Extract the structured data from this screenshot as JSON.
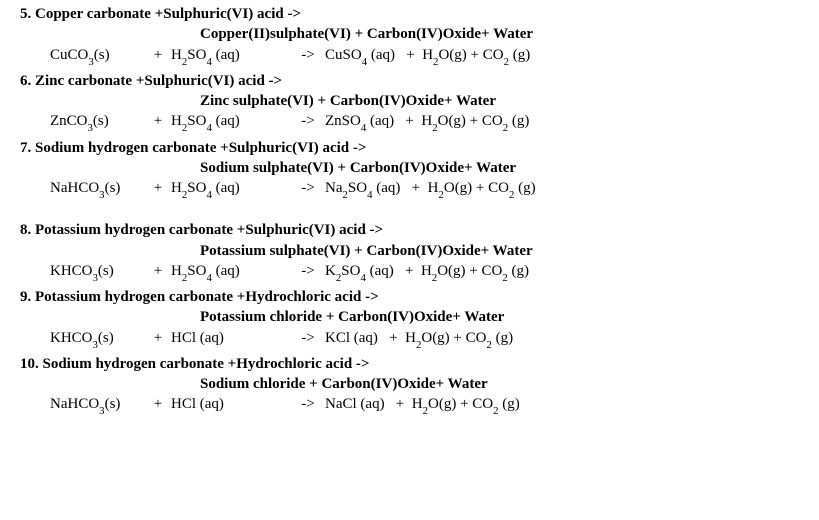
{
  "typography": {
    "font_family": "Times New Roman",
    "font_size_pt": 11,
    "title_weight": "bold",
    "text_color": "#000000",
    "background_color": "#ffffff"
  },
  "reactions": [
    {
      "number": "5.",
      "title_html": "5. Copper carbonate +Sulphuric(VI) acid ->",
      "product_html": "Copper(II)sulphate(VI) + Carbon(IV)Oxide+ Water",
      "eq": {
        "reactant_a_html": "CuCO<sub>3</sub>(s)",
        "plus": "+",
        "reactant_b_html": "H<sub>2</sub>SO<sub>4</sub> (aq)",
        "arrow": "->",
        "rhs_html": "CuSO<sub>4</sub> (aq)&nbsp;&nbsp;&nbsp;+&nbsp;&nbsp;H<sub>2</sub>O(g) + CO<sub>2</sub> (g)"
      },
      "extra_gap": false
    },
    {
      "number": "6.",
      "title_html": "6. Zinc carbonate +Sulphuric(VI) acid ->",
      "product_html": "Zinc sulphate(VI) + Carbon(IV)Oxide+ Water",
      "eq": {
        "reactant_a_html": "ZnCO<sub>3</sub>(s)",
        "plus": "+",
        "reactant_b_html": "H<sub>2</sub>SO<sub>4</sub> (aq)",
        "arrow": "->",
        "rhs_html": "ZnSO<sub>4</sub> (aq)&nbsp;&nbsp;&nbsp;+&nbsp;&nbsp;H<sub>2</sub>O(g) + CO<sub>2</sub> (g)"
      },
      "extra_gap": false
    },
    {
      "number": "7.",
      "title_html": "7. Sodium hydrogen carbonate +Sulphuric(VI) acid ->",
      "product_html": "Sodium sulphate(VI) + Carbon(IV)Oxide+ Water",
      "eq": {
        "reactant_a_html": "NaHCO<sub>3</sub>(s)",
        "plus": "+",
        "reactant_b_html": "H<sub>2</sub>SO<sub>4</sub> (aq)",
        "arrow": "->",
        "rhs_html": "Na<sub>2</sub>SO<sub>4</sub> (aq)&nbsp;&nbsp;&nbsp;+&nbsp;&nbsp;H<sub>2</sub>O(g) + CO<sub>2</sub> (g)"
      },
      "extra_gap": true
    },
    {
      "number": "8.",
      "title_html": "8. Potassium hydrogen carbonate +Sulphuric(VI) acid ->",
      "product_html": "Potassium sulphate(VI) + Carbon(IV)Oxide+ Water",
      "eq": {
        "reactant_a_html": "KHCO<sub>3</sub>(s)",
        "plus": "+",
        "reactant_b_html": "H<sub>2</sub>SO<sub>4</sub> (aq)",
        "arrow": "->",
        "rhs_html": "K<sub>2</sub>SO<sub>4</sub> (aq)&nbsp;&nbsp;&nbsp;+&nbsp;&nbsp;H<sub>2</sub>O(g) + CO<sub>2</sub> (g)"
      },
      "extra_gap": false
    },
    {
      "number": "9.",
      "title_html": "9. Potassium hydrogen carbonate +Hydrochloric acid ->",
      "product_html": "Potassium chloride + Carbon(IV)Oxide+ Water",
      "eq": {
        "reactant_a_html": "KHCO<sub>3</sub>(s)",
        "plus": "+",
        "reactant_b_html": "HCl (aq)",
        "arrow": "->",
        "rhs_html": "KCl (aq)&nbsp;&nbsp;&nbsp;+&nbsp;&nbsp;H<sub>2</sub>O(g) + CO<sub>2</sub> (g)"
      },
      "extra_gap": false
    },
    {
      "number": "10.",
      "title_html": "10. Sodium hydrogen carbonate +Hydrochloric acid ->",
      "product_html": "Sodium chloride + Carbon(IV)Oxide+ Water",
      "eq": {
        "reactant_a_html": "NaHCO<sub>3</sub>(s)",
        "plus": "+",
        "reactant_b_html": "HCl (aq)",
        "arrow": "->",
        "rhs_html": "NaCl (aq)&nbsp;&nbsp;&nbsp;+&nbsp;&nbsp;H<sub>2</sub>O(g) + CO<sub>2</sub> (g)"
      },
      "extra_gap": false
    }
  ]
}
